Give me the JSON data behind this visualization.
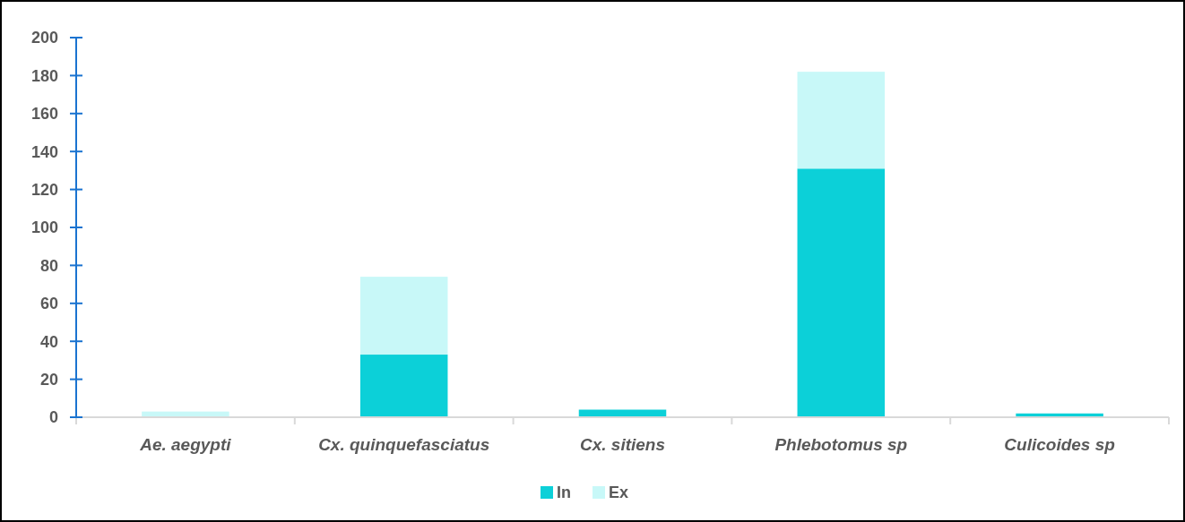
{
  "chart_data": {
    "type": "bar",
    "stacked": true,
    "categories": [
      "Ae. aegypti",
      "Cx. quinquefasciatus",
      "Cx. sitiens",
      "Phlebotomus sp",
      "Culicoides sp"
    ],
    "series": [
      {
        "name": "In",
        "color": "#0cd0d8",
        "values": [
          0,
          33,
          4,
          131,
          2
        ]
      },
      {
        "name": "Ex",
        "color": "#c8f8f8",
        "values": [
          3,
          41,
          0,
          51,
          0
        ]
      }
    ],
    "ylim": [
      0,
      200
    ],
    "yticks": [
      0,
      20,
      40,
      60,
      80,
      100,
      120,
      140,
      160,
      180,
      200
    ],
    "legend": "bottom",
    "grid": false
  }
}
